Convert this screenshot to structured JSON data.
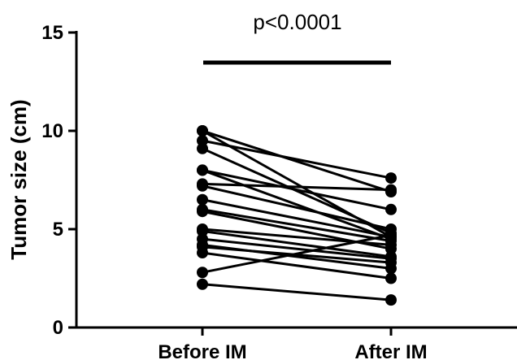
{
  "chart_data": {
    "type": "line",
    "title": "",
    "xlabel": "",
    "ylabel": "Tumor size (cm)",
    "categories": [
      "Before IM",
      "After IM"
    ],
    "y_ticks": [
      "0",
      "5",
      "10",
      "15"
    ],
    "ylim": [
      0,
      15
    ],
    "grid": false,
    "legend": "none",
    "annotation": "p<0.0001",
    "colors": {
      "line": "#000000",
      "marker": "#000000"
    },
    "pairs": [
      {
        "before": 10.0,
        "after": 4.6
      },
      {
        "before": 10.0,
        "after": 6.9
      },
      {
        "before": 9.5,
        "after": 7.6
      },
      {
        "before": 9.1,
        "after": 4.8
      },
      {
        "before": 8.0,
        "after": 6.0
      },
      {
        "before": 8.0,
        "after": 4.5
      },
      {
        "before": 7.3,
        "after": 7.0
      },
      {
        "before": 7.2,
        "after": 5.0
      },
      {
        "before": 6.5,
        "after": 4.6
      },
      {
        "before": 6.0,
        "after": 4.4
      },
      {
        "before": 5.9,
        "after": 4.0
      },
      {
        "before": 5.0,
        "after": 4.2
      },
      {
        "before": 4.9,
        "after": 3.6
      },
      {
        "before": 4.5,
        "after": 3.5
      },
      {
        "before": 4.2,
        "after": 3.0
      },
      {
        "before": 4.1,
        "after": 3.3
      },
      {
        "before": 3.8,
        "after": 2.5
      },
      {
        "before": 2.8,
        "after": 4.7
      },
      {
        "before": 2.2,
        "after": 1.4
      }
    ]
  }
}
